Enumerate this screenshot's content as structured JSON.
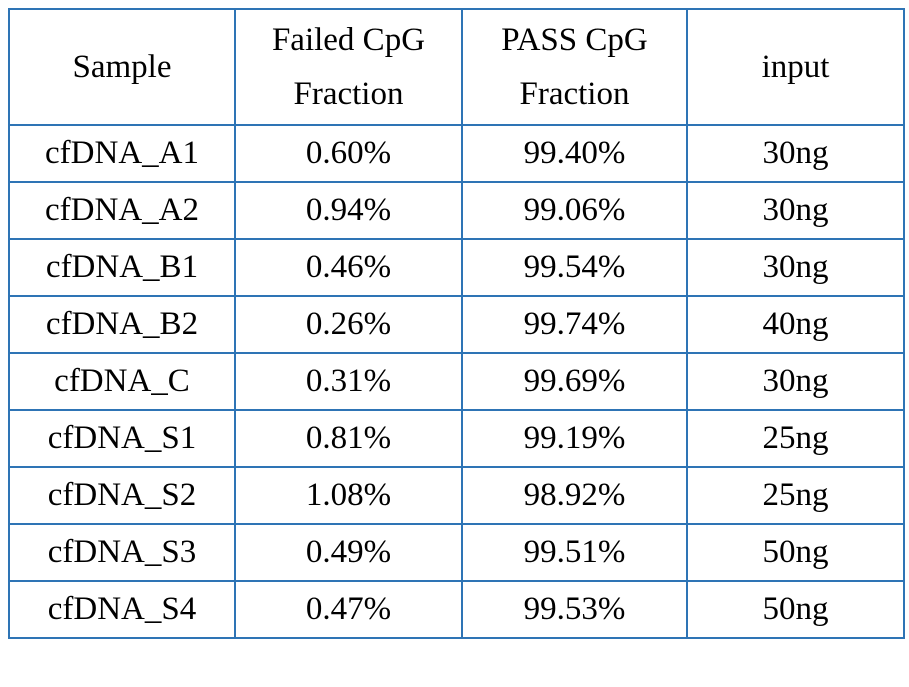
{
  "table": {
    "headers": [
      "Sample",
      "Failed CpG Fraction",
      "PASS CpG Fraction",
      "input"
    ],
    "rows": [
      [
        "cfDNA_A1",
        "0.60%",
        "99.40%",
        "30ng"
      ],
      [
        "cfDNA_A2",
        "0.94%",
        "99.06%",
        "30ng"
      ],
      [
        "cfDNA_B1",
        "0.46%",
        "99.54%",
        "30ng"
      ],
      [
        "cfDNA_B2",
        "0.26%",
        "99.74%",
        "40ng"
      ],
      [
        "cfDNA_C",
        "0.31%",
        "99.69%",
        "30ng"
      ],
      [
        "cfDNA_S1",
        "0.81%",
        "99.19%",
        "25ng"
      ],
      [
        "cfDNA_S2",
        "1.08%",
        "98.92%",
        "25ng"
      ],
      [
        "cfDNA_S3",
        "0.49%",
        "99.51%",
        "50ng"
      ],
      [
        "cfDNA_S4",
        "0.47%",
        "99.53%",
        "50ng"
      ]
    ]
  },
  "colors": {
    "border": "#2e74b5",
    "text": "#000000",
    "background": "#ffffff"
  }
}
